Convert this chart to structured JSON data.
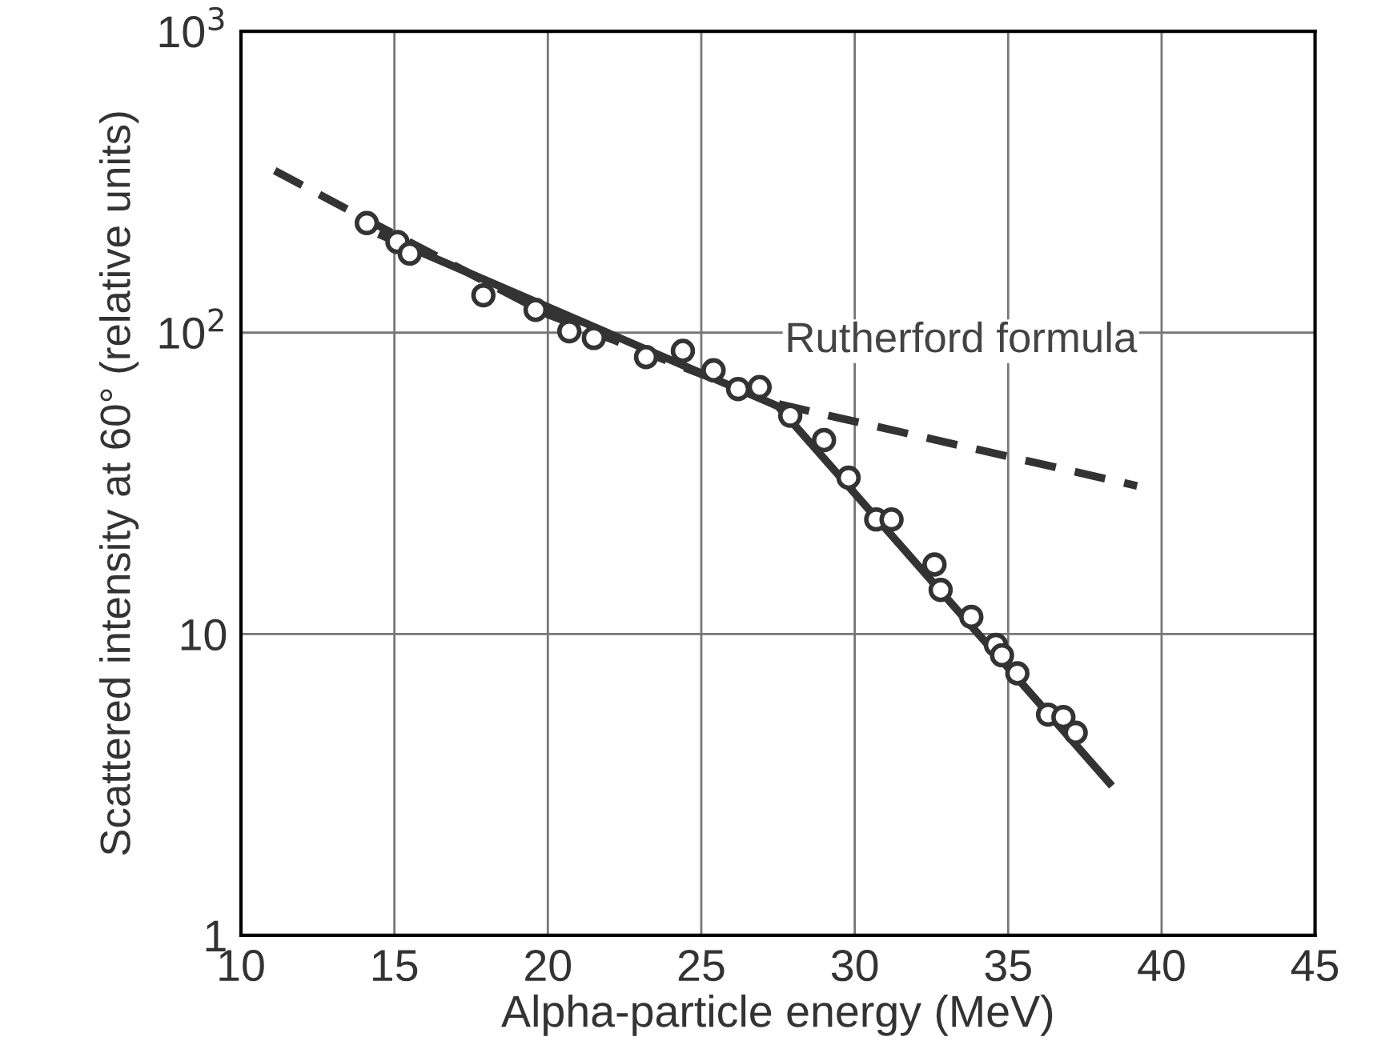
{
  "chart_data": {
    "type": "scatter",
    "xlabel": "Alpha-particle energy (MeV)",
    "ylabel": "Scattered intensity at 60° (relative units)",
    "log": "y",
    "grid": true,
    "xlim": [
      10,
      45
    ],
    "ylim": [
      1,
      1000
    ],
    "xticks": [
      10,
      15,
      20,
      25,
      30,
      35,
      40,
      45
    ],
    "yticks": [
      1,
      10,
      {
        "value": 100,
        "label": "10$^{2}$"
      },
      {
        "value": 1000,
        "label": "10$^{3}$"
      }
    ],
    "series": [
      {
        "type": "line",
        "name": "Rutherford formula",
        "color": "#333333",
        "line_style": "dashed",
        "marker": "none",
        "x": [
          11.1,
          14,
          20,
          27.5,
          39.2
        ],
        "values": [
          345,
          240,
          115,
          58,
          31
        ]
      },
      {
        "type": "line",
        "color": "#333333",
        "line_style": "solid",
        "marker": "none",
        "x": [
          14.6,
          27.5,
          38.3
        ],
        "values": [
          210,
          57,
          3.2
        ]
      },
      {
        "color": "#333333",
        "marker": "circle",
        "x": [
          14.1,
          15.1,
          15.5,
          17.9,
          19.6,
          20.7,
          21.5,
          23.2,
          24.4,
          25.4,
          26.2,
          26.9,
          27.9,
          29.0,
          29.8,
          30.7,
          31.2,
          32.6,
          32.8,
          33.8,
          34.6,
          34.8,
          35.3,
          36.3,
          36.8,
          37.2
        ],
        "values": [
          231,
          200,
          183,
          133,
          119,
          101,
          96,
          83,
          87,
          75,
          65,
          66,
          53,
          44,
          33,
          24,
          24,
          17,
          14,
          11.4,
          9.2,
          8.5,
          7.4,
          5.4,
          5.3,
          4.7
        ]
      }
    ]
  }
}
